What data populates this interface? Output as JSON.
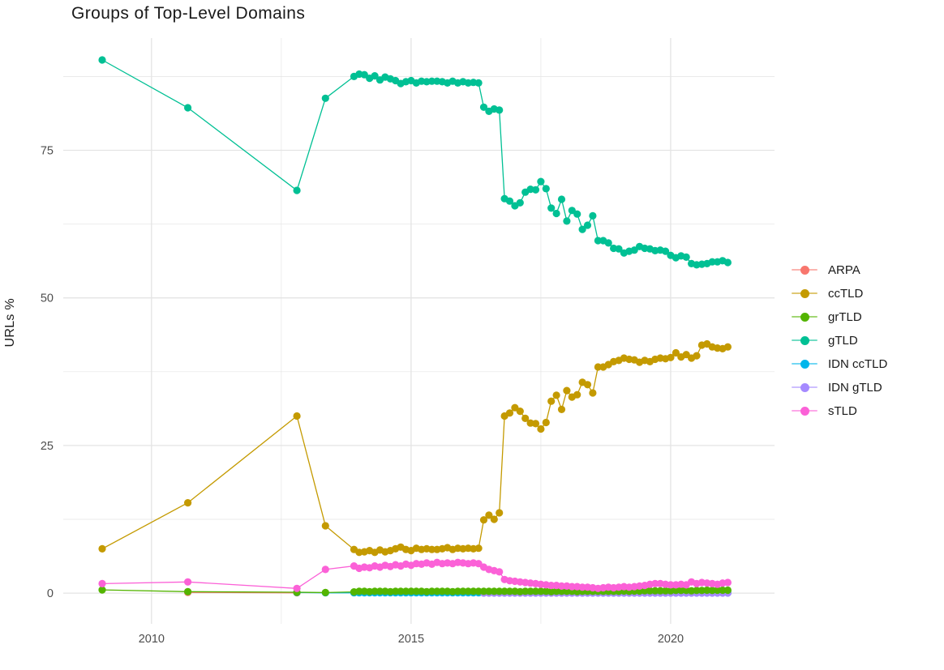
{
  "chart_data": {
    "type": "line",
    "title": "Groups of Top-Level Domains",
    "xlabel": "",
    "ylabel": "URLs %",
    "legend_position": "right",
    "grid": true,
    "grid_color": "#e4e4e4",
    "background": "#ffffff",
    "xlim": [
      2008.3,
      2022.0
    ],
    "ylim": [
      -5.2,
      94.0
    ],
    "x_ticks": [
      2010,
      2015,
      2020
    ],
    "x_minor": [
      2012.5,
      2017.5
    ],
    "y_ticks": [
      0,
      25,
      50,
      75
    ],
    "y_minor": [
      12.5,
      37.5,
      62.5,
      87.5
    ],
    "draw_order": [
      "ARPA",
      "IDN ccTLD",
      "IDN gTLD",
      "grTLD",
      "ccTLD",
      "gTLD",
      "sTLD"
    ],
    "x_main": [
      2009.05,
      2010.7,
      2012.8,
      2013.35,
      2013.9,
      2014.0,
      2014.1,
      2014.2,
      2014.3,
      2014.4,
      2014.5,
      2014.6,
      2014.7,
      2014.8,
      2014.9,
      2015.0,
      2015.1,
      2015.2,
      2015.3,
      2015.4,
      2015.5,
      2015.6,
      2015.7,
      2015.8,
      2015.9,
      2016.0,
      2016.1,
      2016.2,
      2016.3,
      2016.4,
      2016.5,
      2016.6,
      2016.7,
      2016.8,
      2016.9,
      2017.0,
      2017.1,
      2017.2,
      2017.3,
      2017.4,
      2017.5,
      2017.6,
      2017.7,
      2017.8,
      2017.9,
      2018.0,
      2018.1,
      2018.2,
      2018.3,
      2018.4,
      2018.5,
      2018.6,
      2018.7,
      2018.8,
      2018.9,
      2019.0,
      2019.1,
      2019.2,
      2019.3,
      2019.4,
      2019.5,
      2019.6,
      2019.7,
      2019.8,
      2019.9,
      2020.0,
      2020.1,
      2020.2,
      2020.3,
      2020.4,
      2020.5,
      2020.6,
      2020.7,
      2020.8,
      2020.9,
      2021.0,
      2021.1
    ],
    "series": [
      {
        "name": "ARPA",
        "color": "#F8766D",
        "x": [
          2010.7,
          2012.8
        ],
        "y": [
          0.12,
          0.05
        ]
      },
      {
        "name": "ccTLD",
        "color": "#C49A00",
        "x_from": 0,
        "y": [
          7.5,
          15.3,
          30.0,
          11.4,
          7.4,
          6.9,
          7.0,
          7.2,
          6.9,
          7.3,
          7.0,
          7.2,
          7.5,
          7.8,
          7.4,
          7.2,
          7.6,
          7.4,
          7.5,
          7.4,
          7.4,
          7.5,
          7.7,
          7.4,
          7.6,
          7.5,
          7.6,
          7.5,
          7.6,
          12.4,
          13.2,
          12.5,
          13.6,
          30.0,
          30.5,
          31.4,
          30.8,
          29.6,
          28.8,
          28.7,
          27.8,
          28.9,
          32.5,
          33.5,
          31.1,
          34.3,
          33.2,
          33.6,
          35.7,
          35.3,
          33.9,
          38.3,
          38.3,
          38.7,
          39.2,
          39.4,
          39.8,
          39.6,
          39.5,
          39.1,
          39.4,
          39.2,
          39.6,
          39.8,
          39.7,
          39.9,
          40.7,
          40.0,
          40.4,
          39.8,
          40.2,
          42.0,
          42.2,
          41.7,
          41.5,
          41.4,
          41.7
        ]
      },
      {
        "name": "grTLD",
        "color": "#53B400",
        "x_from": 0,
        "y": [
          0.55,
          0.25,
          0.15,
          0.1,
          0.2,
          0.3,
          0.3,
          0.25,
          0.3,
          0.3,
          0.3,
          0.25,
          0.3,
          0.3,
          0.3,
          0.3,
          0.3,
          0.3,
          0.25,
          0.3,
          0.3,
          0.3,
          0.3,
          0.25,
          0.3,
          0.3,
          0.3,
          0.3,
          0.3,
          0.3,
          0.3,
          0.3,
          0.3,
          0.3,
          0.3,
          0.3,
          0.25,
          0.3,
          0.3,
          0.3,
          0.3,
          0.3,
          0.25,
          0.3,
          0.3,
          0.3,
          0.3,
          0.25,
          0.3,
          0.3,
          0.3,
          0.3,
          0.3,
          0.3,
          0.3,
          0.3,
          0.35,
          0.3,
          0.35,
          0.35,
          0.4,
          0.4,
          0.4,
          0.4,
          0.4,
          0.4,
          0.45,
          0.45,
          0.45,
          0.4,
          0.45,
          0.45,
          0.5,
          0.45,
          0.5,
          0.5,
          0.5
        ]
      },
      {
        "name": "gTLD",
        "color": "#00C094",
        "x_from": 0,
        "y": [
          90.3,
          82.2,
          68.2,
          83.8,
          87.5,
          87.9,
          87.8,
          87.2,
          87.6,
          86.9,
          87.4,
          87.1,
          86.8,
          86.3,
          86.6,
          86.8,
          86.4,
          86.7,
          86.6,
          86.7,
          86.7,
          86.6,
          86.4,
          86.7,
          86.4,
          86.6,
          86.4,
          86.5,
          86.4,
          82.3,
          81.6,
          82.0,
          81.8,
          66.8,
          66.4,
          65.6,
          66.1,
          67.9,
          68.4,
          68.3,
          69.7,
          68.5,
          65.2,
          64.3,
          66.7,
          63.0,
          64.8,
          64.2,
          61.6,
          62.3,
          63.9,
          59.7,
          59.7,
          59.3,
          58.4,
          58.3,
          57.6,
          57.9,
          58.1,
          58.7,
          58.4,
          58.3,
          58.0,
          58.1,
          57.9,
          57.2,
          56.8,
          57.1,
          56.9,
          55.8,
          55.6,
          55.7,
          55.8,
          56.1,
          56.1,
          56.3,
          56.0
        ]
      },
      {
        "name": "IDN ccTLD",
        "color": "#00B6EB",
        "x_from": 2,
        "y": [
          0.1,
          0.05,
          0.05,
          0.05,
          0.05,
          0.05,
          0.05,
          0.05,
          0.05,
          0.05,
          0.05,
          0.05,
          0.05,
          0.05,
          0.05,
          0.05,
          0.05,
          0.05,
          0.05,
          0.05,
          0.05,
          0.05,
          0.05,
          0.05,
          0.05,
          0.05,
          0.05,
          0.05,
          0.05,
          0.05,
          0.05,
          0.05,
          0.05,
          0.05,
          0.05,
          0.05,
          0.05,
          0.05,
          0.05,
          0.05,
          0.05,
          0.05,
          0.05,
          0.05,
          0.05,
          0.05,
          0.05,
          0.05,
          0.05,
          0.05,
          0.05,
          0.05,
          0.05,
          0.05,
          0.05,
          0.05,
          0.05,
          0.05,
          0.05,
          0.05,
          0.05,
          0.05,
          0.05,
          0.05,
          0.05,
          0.05,
          0.05,
          0.05,
          0.05,
          0.05,
          0.05,
          0.05,
          0.05,
          0.05,
          0.05
        ]
      },
      {
        "name": "IDN gTLD",
        "color": "#A58AFF",
        "x_from": 29,
        "y": [
          0.02,
          0.02,
          0.02,
          0.02,
          0.02,
          0.02,
          0.02,
          0.02,
          0.02,
          0.02,
          0.02,
          0.02,
          0.02,
          0.02,
          0.02,
          0.02,
          0.02,
          0.02,
          0.02,
          0.02,
          0.02,
          0.02,
          0.02,
          0.02,
          0.02,
          0.02,
          0.02,
          0.02,
          0.02,
          0.02,
          0.02,
          0.02,
          0.02,
          0.02,
          0.02,
          0.02,
          0.02,
          0.02,
          0.02,
          0.02,
          0.02,
          0.02,
          0.02,
          0.02,
          0.02,
          0.02,
          0.02,
          0.02
        ]
      },
      {
        "name": "sTLD",
        "color": "#FB61D7",
        "x_from": 0,
        "y": [
          1.6,
          1.9,
          0.8,
          4.0,
          4.6,
          4.2,
          4.4,
          4.3,
          4.6,
          4.4,
          4.7,
          4.5,
          4.8,
          4.6,
          4.9,
          4.7,
          5.0,
          4.9,
          5.1,
          4.9,
          5.2,
          5.0,
          5.1,
          5.0,
          5.2,
          5.1,
          5.0,
          5.1,
          5.0,
          4.4,
          4.0,
          3.8,
          3.6,
          2.3,
          2.1,
          2.0,
          1.9,
          1.8,
          1.7,
          1.6,
          1.5,
          1.4,
          1.3,
          1.3,
          1.2,
          1.2,
          1.1,
          1.1,
          1.0,
          1.0,
          0.9,
          0.8,
          0.9,
          1.0,
          0.9,
          1.0,
          1.1,
          1.0,
          1.1,
          1.2,
          1.3,
          1.5,
          1.6,
          1.6,
          1.5,
          1.4,
          1.4,
          1.5,
          1.4,
          1.9,
          1.6,
          1.8,
          1.7,
          1.6,
          1.5,
          1.7,
          1.8
        ]
      }
    ]
  }
}
